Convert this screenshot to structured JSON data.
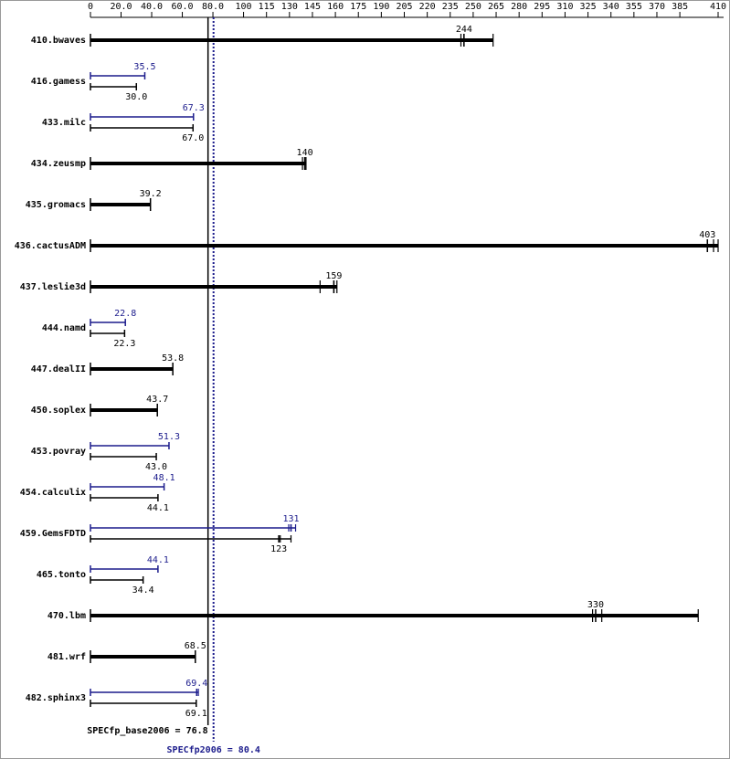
{
  "chart_data": {
    "type": "bar",
    "categories": [
      "410.bwaves",
      "416.gamess",
      "433.milc",
      "434.zeusmp",
      "435.gromacs",
      "436.cactusADM",
      "437.leslie3d",
      "444.namd",
      "447.dealII",
      "450.soplex",
      "453.povray",
      "454.calculix",
      "459.GemsFDTD",
      "465.tonto",
      "470.lbm",
      "481.wrf",
      "482.sphinx3"
    ],
    "series": [
      {
        "color": "#000000",
        "values": [
          244,
          30.0,
          67.0,
          140,
          39.2,
          403,
          159,
          22.3,
          53.8,
          43.7,
          43.0,
          44.1,
          123,
          34.4,
          330,
          68.5,
          69.1
        ],
        "value_labels": [
          "244",
          "30.0",
          "67.0",
          "140",
          "39.2",
          "403",
          "159",
          "22.3",
          "53.8",
          "43.7",
          "43.0",
          "44.1",
          "123",
          "34.4",
          "330",
          "68.5",
          "69.1"
        ],
        "runs": [
          [
            242,
            244,
            263
          ],
          null,
          null,
          [
            138.5,
            140,
            140.8
          ],
          null,
          [
            403,
            407,
            410
          ],
          [
            150,
            159,
            161
          ],
          null,
          null,
          null,
          null,
          null,
          [
            123,
            124,
            131
          ],
          null,
          [
            328,
            334,
            397
          ],
          null,
          null
        ]
      },
      {
        "color": "#1c1c8c",
        "values": [
          null,
          35.5,
          67.3,
          null,
          null,
          null,
          null,
          22.8,
          null,
          null,
          51.3,
          48.1,
          131,
          44.1,
          null,
          null,
          69.4
        ],
        "value_labels": [
          null,
          "35.5",
          "67.3",
          null,
          null,
          null,
          null,
          "22.8",
          null,
          null,
          "51.3",
          "48.1",
          "131",
          "44.1",
          null,
          null,
          "69.4"
        ],
        "runs": [
          null,
          null,
          null,
          null,
          null,
          null,
          null,
          null,
          null,
          null,
          null,
          null,
          [
            129.5,
            131,
            134
          ],
          null,
          null,
          null,
          [
            69.4,
            70.5
          ]
        ]
      }
    ],
    "reference_lines": [
      {
        "value": 76.8,
        "label": "SPECfp_base2006 = 76.8",
        "color": "#000000",
        "style": "solid"
      },
      {
        "value": 80.4,
        "label": "SPECfp2006 = 80.4",
        "color": "#1c1c8c",
        "style": "dotted"
      }
    ],
    "xlim": [
      0,
      410
    ],
    "xticks": [
      0,
      {
        "value": 20,
        "label": "20.0"
      },
      {
        "value": 40,
        "label": "40.0"
      },
      {
        "value": 60,
        "label": "60.0"
      },
      {
        "value": 80,
        "label": "80.0"
      },
      100,
      115,
      130,
      145,
      160,
      175,
      190,
      205,
      220,
      235,
      250,
      265,
      280,
      295,
      310,
      325,
      340,
      355,
      370,
      385,
      410
    ]
  }
}
